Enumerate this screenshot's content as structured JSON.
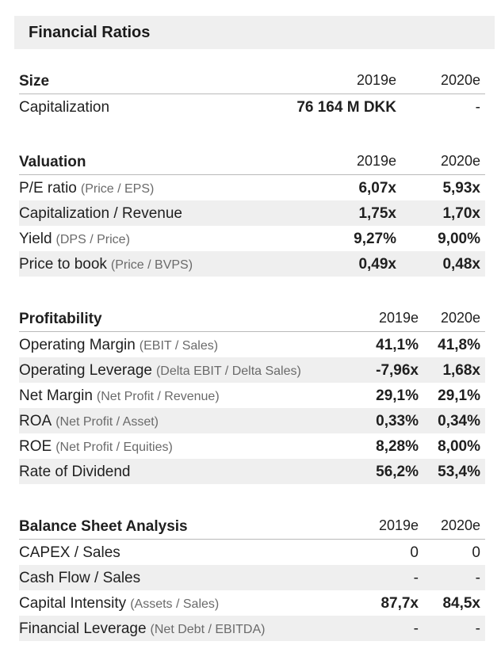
{
  "title": "Financial Ratios",
  "sections": [
    {
      "title": "Size",
      "col1": "2019e",
      "col2": "2020e",
      "rows": [
        {
          "label": "Capitalization",
          "sub": "",
          "v1": "76 164 M DKK",
          "v2": "-"
        }
      ]
    },
    {
      "title": "Valuation",
      "col1": "2019e",
      "col2": "2020e",
      "rows": [
        {
          "label": "P/E ratio",
          "sub": "(Price / EPS)",
          "v1": "6,07x",
          "v2": "5,93x"
        },
        {
          "label": "Capitalization / Revenue",
          "sub": "",
          "v1": "1,75x",
          "v2": "1,70x"
        },
        {
          "label": "Yield",
          "sub": "(DPS / Price)",
          "v1": "9,27%",
          "v2": "9,00%"
        },
        {
          "label": "Price to book",
          "sub": "(Price / BVPS)",
          "v1": "0,49x",
          "v2": "0,48x"
        }
      ]
    },
    {
      "title": "Profitability",
      "col1": "2019e",
      "col2": "2020e",
      "rows": [
        {
          "label": "Operating Margin",
          "sub": "(EBIT / Sales)",
          "v1": "41,1%",
          "v2": "41,8%"
        },
        {
          "label": "Operating Leverage",
          "sub": "(Delta EBIT / Delta Sales)",
          "v1": "-7,96x",
          "v2": "1,68x"
        },
        {
          "label": "Net Margin",
          "sub": "(Net Profit / Revenue)",
          "v1": "29,1%",
          "v2": "29,1%"
        },
        {
          "label": "ROA",
          "sub": "(Net Profit / Asset)",
          "v1": "0,33%",
          "v2": "0,34%"
        },
        {
          "label": "ROE",
          "sub": "(Net Profit / Equities)",
          "v1": "8,28%",
          "v2": "8,00%"
        },
        {
          "label": "Rate of Dividend",
          "sub": "",
          "v1": "56,2%",
          "v2": "53,4%"
        }
      ]
    },
    {
      "title": "Balance Sheet Analysis",
      "col1": "2019e",
      "col2": "2020e",
      "rows": [
        {
          "label": "CAPEX / Sales",
          "sub": "",
          "v1": "0",
          "v2": "0"
        },
        {
          "label": "Cash Flow / Sales",
          "sub": "",
          "v1": "-",
          "v2": "-"
        },
        {
          "label": "Capital Intensity",
          "sub": "(Assets / Sales)",
          "v1": "87,7x",
          "v2": "84,5x"
        },
        {
          "label": "Financial Leverage",
          "sub": "(Net Debt / EBITDA)",
          "v1": "-",
          "v2": "-"
        }
      ]
    }
  ]
}
